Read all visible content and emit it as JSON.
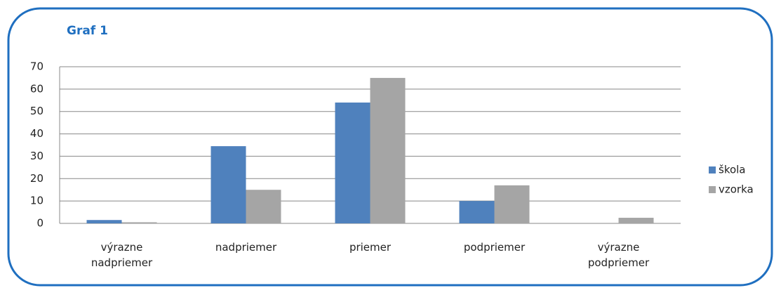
{
  "chart_data": {
    "type": "bar",
    "title": "Graf 1",
    "categories": [
      "výrazne nadpriemer",
      "nadpriemer",
      "priemer",
      "podpriemer",
      "výrazne podpriemer"
    ],
    "series": [
      {
        "name": "škola",
        "color": "#4f81bd",
        "values": [
          1.5,
          34.5,
          54,
          10,
          0
        ]
      },
      {
        "name": "vzorka",
        "color": "#a5a5a5",
        "values": [
          0.5,
          15,
          65,
          17,
          2.5
        ]
      }
    ],
    "ylim": [
      0,
      70
    ],
    "yticks": [
      0,
      10,
      20,
      30,
      40,
      50,
      60,
      70
    ],
    "grid": true,
    "legend": "right"
  }
}
